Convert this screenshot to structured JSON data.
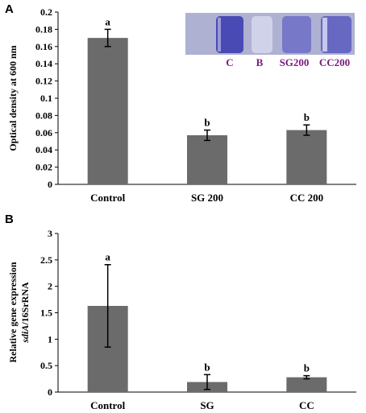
{
  "colors": {
    "bar": "#6b6b6b",
    "axis": "#000000",
    "inset_label": "#7a1a7e"
  },
  "chart_data": [
    {
      "panel": "A",
      "type": "bar",
      "title": "",
      "xlabel": "",
      "ylabel": "Optical density at 600 nm",
      "ylim": [
        0,
        0.2
      ],
      "yticks": [
        "0",
        "0.02",
        "0.04",
        "0.06",
        "0.08",
        "0.1",
        "0.12",
        "0.14",
        "0.16",
        "0.18",
        "0.2"
      ],
      "categories": [
        "Control",
        "SG 200",
        "CC 200"
      ],
      "values": [
        0.17,
        0.057,
        0.063
      ],
      "errors": [
        0.01,
        0.006,
        0.006
      ],
      "significance": [
        "a",
        "b",
        "b"
      ],
      "grid": false,
      "inset_labels": [
        "C",
        "B",
        "SG200",
        "CC200"
      ]
    },
    {
      "panel": "B",
      "type": "bar",
      "title": "",
      "xlabel": "",
      "ylabel_line1": "Relative gene expression",
      "ylabel_line2_italic": "sdiA",
      "ylabel_line2_rest": "/16SrRNA",
      "ylim": [
        0,
        3
      ],
      "yticks": [
        "0",
        "0.5",
        "1",
        "1.5",
        "2",
        "2.5",
        "3"
      ],
      "categories": [
        "Control",
        "SG",
        "CC"
      ],
      "values": [
        1.63,
        0.19,
        0.28
      ],
      "errors": [
        0.78,
        0.14,
        0.03
      ],
      "significance": [
        "a",
        "b",
        "b"
      ],
      "grid": false
    }
  ]
}
